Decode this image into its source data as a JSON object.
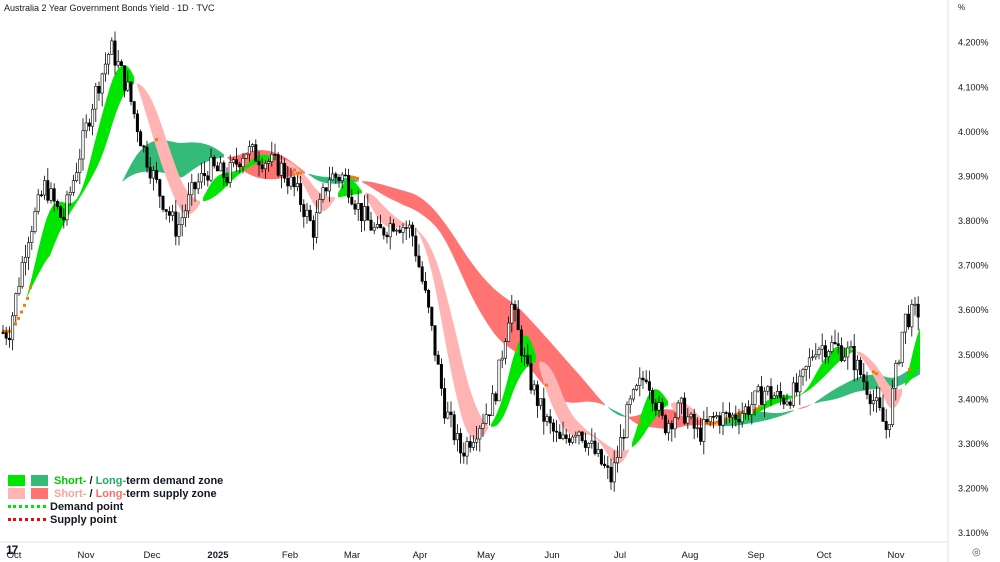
{
  "header": {
    "title": "Australia 2 Year Government Bonds Yield · 1D · TVC"
  },
  "axis_unit": "%",
  "legend": {
    "demand_zone": {
      "short": "Short-",
      "sep": " / ",
      "long": "Long-",
      "suffix": "term demand zone"
    },
    "supply_zone": {
      "short": "Short-",
      "sep": " / ",
      "long": "Long-",
      "suffix": "term supply zone"
    },
    "demand_point": "Demand point",
    "supply_point": "Supply point"
  },
  "colors": {
    "short_demand": "#00e600",
    "long_demand": "#33bb77",
    "short_supply": "#ffb3b3",
    "long_supply": "#ff7373",
    "neutral_band": "#f57c00",
    "demand_text": "#00c800",
    "supply_text": "#ff8a8a",
    "candle": "#000000",
    "axis_text": "#131722"
  },
  "logo_text": "17",
  "chart_data": {
    "type": "candlestick",
    "title": "Australia 2 Year Government Bonds Yield · 1D · TVC",
    "y_unit": "%",
    "ylim": [
      3.08,
      4.26
    ],
    "yticks": [
      "4.200%",
      "4.100%",
      "4.000%",
      "3.900%",
      "3.800%",
      "3.700%",
      "3.600%",
      "3.500%",
      "3.400%",
      "3.300%",
      "3.200%",
      "3.100%"
    ],
    "xticks": [
      "Oct",
      "Nov",
      "Dec",
      "2025",
      "Feb",
      "Mar",
      "Apr",
      "May",
      "Jun",
      "Jul",
      "Aug",
      "Sep",
      "Oct",
      "Nov"
    ],
    "close_anchors": [
      [
        "Oct",
        3.55
      ],
      [
        "Oct",
        3.76
      ],
      [
        "Oct",
        3.88
      ],
      [
        "Oct",
        3.8
      ],
      [
        "Nov",
        4.08
      ],
      [
        "Nov",
        4.19
      ],
      [
        "Nov",
        4.1
      ],
      [
        "Nov",
        3.96
      ],
      [
        "Dec",
        3.86
      ],
      [
        "Dec",
        3.78
      ],
      [
        "Dec",
        3.87
      ],
      [
        "Dec",
        3.92
      ],
      [
        "2025",
        3.9
      ],
      [
        "2025",
        3.96
      ],
      [
        "2025",
        3.94
      ],
      [
        "2025",
        3.92
      ],
      [
        "Feb",
        3.86
      ],
      [
        "Feb",
        3.78
      ],
      [
        "Feb",
        3.9
      ],
      [
        "Feb",
        3.9
      ],
      [
        "Mar",
        3.82
      ],
      [
        "Mar",
        3.77
      ],
      [
        "Mar",
        3.8
      ],
      [
        "Mar",
        3.78
      ],
      [
        "Apr",
        3.6
      ],
      [
        "Apr",
        3.38
      ],
      [
        "Apr",
        3.28
      ],
      [
        "Apr",
        3.34
      ],
      [
        "May",
        3.4
      ],
      [
        "May",
        3.62
      ],
      [
        "May",
        3.46
      ],
      [
        "May",
        3.36
      ],
      [
        "Jun",
        3.3
      ],
      [
        "Jun",
        3.34
      ],
      [
        "Jun",
        3.28
      ],
      [
        "Jun",
        3.22
      ],
      [
        "Jul",
        3.38
      ],
      [
        "Jul",
        3.46
      ],
      [
        "Jul",
        3.34
      ],
      [
        "Jul",
        3.38
      ],
      [
        "Aug",
        3.32
      ],
      [
        "Aug",
        3.36
      ],
      [
        "Aug",
        3.36
      ],
      [
        "Aug",
        3.38
      ],
      [
        "Sep",
        3.42
      ],
      [
        "Sep",
        3.4
      ],
      [
        "Sep",
        3.42
      ],
      [
        "Sep",
        3.52
      ],
      [
        "Oct",
        3.52
      ],
      [
        "Oct",
        3.5
      ],
      [
        "Oct",
        3.42
      ],
      [
        "Oct",
        3.33
      ],
      [
        "Nov",
        3.58
      ],
      [
        "Nov",
        3.6
      ],
      [
        "Nov",
        3.64
      ],
      [
        "Nov",
        3.74
      ]
    ],
    "supply_zone": [
      [
        "Mar",
        3.86
      ],
      [
        "Apr",
        3.83
      ],
      [
        "May",
        3.7
      ],
      [
        "Jun",
        3.64
      ],
      [
        "Jul",
        3.57
      ],
      [
        "Aug",
        3.54
      ],
      [
        "Sep",
        3.51
      ],
      [
        "Oct",
        3.48
      ],
      [
        "Nov",
        3.46
      ]
    ],
    "demand_zone": [
      [
        "Oct",
        3.82
      ],
      [
        "Nov",
        3.83
      ],
      [
        "Dec",
        3.88
      ],
      [
        "2025",
        3.89
      ],
      [
        "Feb",
        3.89
      ]
    ]
  }
}
